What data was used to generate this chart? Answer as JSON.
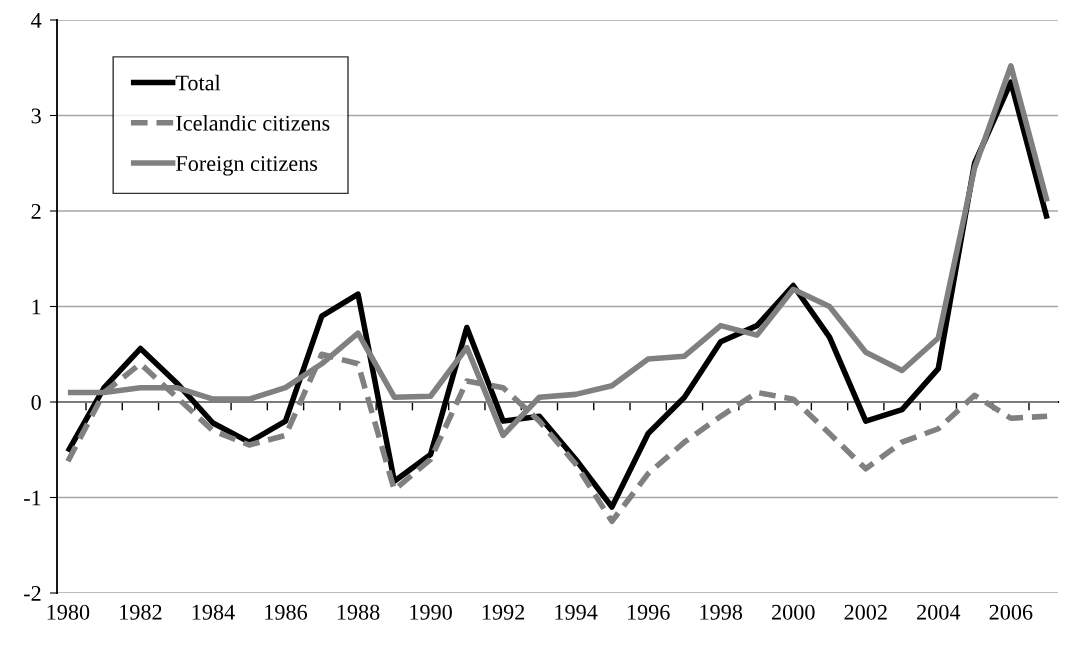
{
  "chart_data": {
    "type": "line",
    "categories": [
      "1980",
      null,
      "1982",
      null,
      "1984",
      null,
      "1986",
      null,
      "1988",
      null,
      "1990",
      null,
      "1992",
      null,
      "1994",
      null,
      "1996",
      null,
      "1998",
      null,
      "2000",
      null,
      "2002",
      null,
      "2004",
      null,
      "2006",
      null
    ],
    "series": [
      {
        "name": "Total",
        "color": "#000000",
        "line_style": "solid",
        "values": [
          -0.52,
          0.15,
          0.56,
          0.2,
          -0.22,
          -0.42,
          -0.2,
          0.9,
          1.13,
          -0.83,
          -0.55,
          0.78,
          -0.2,
          -0.15,
          -0.6,
          -1.1,
          -0.33,
          0.05,
          0.63,
          0.8,
          1.22,
          0.68,
          -0.2,
          -0.08,
          0.35,
          2.5,
          3.35,
          1.92
        ]
      },
      {
        "name": "Icelandic citizens",
        "color": "#808080",
        "line_style": "dashed",
        "values": [
          -0.62,
          0.1,
          0.4,
          0.05,
          -0.3,
          -0.45,
          -0.35,
          0.5,
          0.4,
          -0.92,
          -0.6,
          0.22,
          0.15,
          -0.2,
          -0.65,
          -1.25,
          -0.75,
          -0.42,
          -0.15,
          0.1,
          0.03,
          -0.33,
          -0.7,
          -0.42,
          -0.28,
          0.07,
          -0.17,
          -0.15
        ]
      },
      {
        "name": "Foreign citizens",
        "color": "#808080",
        "line_style": "solid",
        "values": [
          0.1,
          0.1,
          0.15,
          0.15,
          0.03,
          0.03,
          0.15,
          0.4,
          0.72,
          0.05,
          0.06,
          0.57,
          -0.35,
          0.05,
          0.08,
          0.17,
          0.45,
          0.48,
          0.8,
          0.7,
          1.18,
          1.0,
          0.52,
          0.33,
          0.67,
          2.45,
          3.52,
          2.1
        ]
      }
    ],
    "ylim": [
      -2,
      4
    ],
    "yticks": [
      {
        "value": -2,
        "label": "-2"
      },
      {
        "value": -1,
        "label": "-1"
      },
      0,
      1,
      2,
      3,
      4
    ],
    "grid": "y",
    "legend": "top left",
    "marker": "none"
  }
}
